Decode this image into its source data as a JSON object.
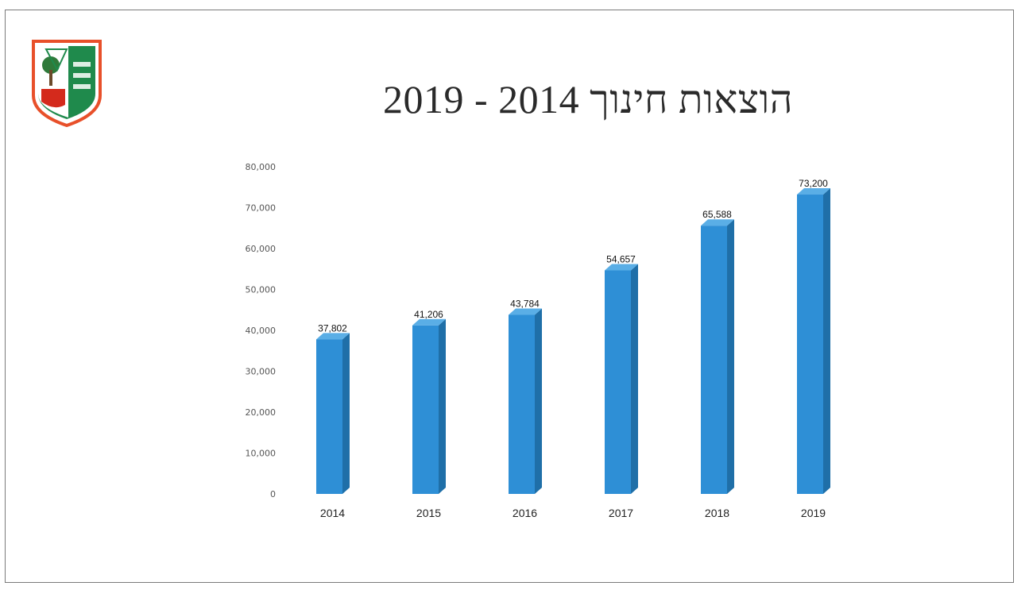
{
  "page": {
    "title": "הוצאות חינוך 2014 - 2019",
    "logo": {
      "icon": "municipal-emblem-icon",
      "colors": {
        "shield_border": "#e8502a",
        "green": "#1f8a4c",
        "red": "#d42a1c"
      }
    }
  },
  "chart_data": {
    "type": "bar",
    "style": "3d-column",
    "categories": [
      "2014",
      "2015",
      "2016",
      "2017",
      "2018",
      "2019"
    ],
    "values": [
      37802,
      41206,
      43784,
      54657,
      65588,
      73200
    ],
    "value_labels": [
      "37,802",
      "41,206",
      "43,784",
      "54,657",
      "65,588",
      "73,200"
    ],
    "y_ticks": [
      "0",
      "10,000",
      "20,000",
      "30,000",
      "40,000",
      "50,000",
      "60,000",
      "70,000",
      "80,000"
    ],
    "ylim": [
      0,
      80000
    ],
    "grid": false,
    "legend": "none",
    "colors": {
      "bar_front": "#2e8fd6",
      "bar_side": "#1f6fa8",
      "bar_top": "#5aaee6"
    }
  }
}
